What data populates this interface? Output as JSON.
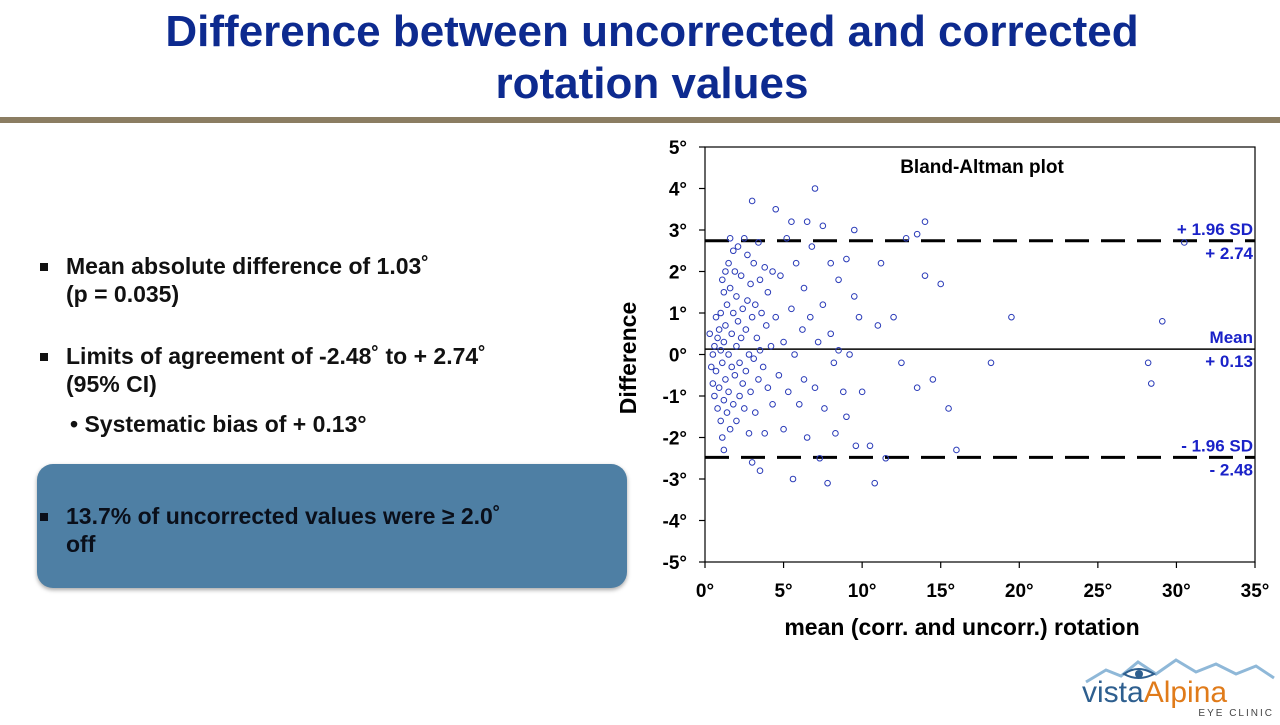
{
  "slide": {
    "title_line1": "Difference between uncorrected and corrected",
    "title_line2": "rotation values"
  },
  "bullets": {
    "mean_abs_line1": "Mean absolute difference of 1.03˚",
    "mean_abs_line2": "(p = 0.035)",
    "limits_line1": "Limits of agreement of -2.48˚ to + 2.74˚",
    "limits_line2": "(95% CI)",
    "bias_sub": "• Systematic bias of + 0.13°",
    "highlight_line1": "13.7% of uncorrected values were ≥ 2.0˚",
    "highlight_line2": "off"
  },
  "logo": {
    "brand_part1": "vista",
    "brand_part2": "Alpina",
    "tagline": "EYE CLINIC"
  },
  "colors": {
    "title": "#0d2a8f",
    "rule": "#8b7d62",
    "highlight_box": "#4e7fa4",
    "points": "#2a3bb8",
    "annotations": "#1a22c8"
  },
  "chart_data": {
    "type": "scatter",
    "title": "Bland-Altman plot",
    "xlabel": "mean (corr. and uncorr.) rotation",
    "ylabel": "Difference",
    "xlim": [
      0,
      35
    ],
    "ylim": [
      -5,
      5
    ],
    "x_ticks": [
      "0°",
      "5°",
      "10°",
      "15°",
      "20°",
      "25°",
      "30°",
      "35°"
    ],
    "y_ticks": [
      "5°",
      "4°",
      "3°",
      "2°",
      "1°",
      "0°",
      "-1°",
      "-2°",
      "-3°",
      "-4°",
      "-5°"
    ],
    "grid": false,
    "reference_lines": [
      {
        "name_line1": "+ 1.96 SD",
        "name_line2": "+ 2.74",
        "value": 2.74,
        "style": "dashed"
      },
      {
        "name_line1": "Mean",
        "name_line2": "+ 0.13",
        "value": 0.13,
        "style": "solid"
      },
      {
        "name_line1": "- 1.96 SD",
        "name_line2": "- 2.48",
        "value": -2.48,
        "style": "dashed"
      }
    ],
    "points": [
      [
        0.3,
        0.5
      ],
      [
        0.4,
        -0.3
      ],
      [
        0.5,
        0.0
      ],
      [
        0.5,
        -0.7
      ],
      [
        0.6,
        0.2
      ],
      [
        0.6,
        -1.0
      ],
      [
        0.7,
        0.9
      ],
      [
        0.7,
        -0.4
      ],
      [
        0.8,
        0.4
      ],
      [
        0.8,
        -1.3
      ],
      [
        0.9,
        0.6
      ],
      [
        0.9,
        -0.8
      ],
      [
        1.0,
        1.0
      ],
      [
        1.0,
        0.1
      ],
      [
        1.0,
        -1.6
      ],
      [
        1.1,
        1.8
      ],
      [
        1.1,
        -0.2
      ],
      [
        1.1,
        -2.0
      ],
      [
        1.2,
        1.5
      ],
      [
        1.2,
        0.3
      ],
      [
        1.2,
        -1.1
      ],
      [
        1.2,
        -2.3
      ],
      [
        1.3,
        2.0
      ],
      [
        1.3,
        0.7
      ],
      [
        1.3,
        -0.6
      ],
      [
        1.4,
        1.2
      ],
      [
        1.4,
        -1.4
      ],
      [
        1.5,
        2.2
      ],
      [
        1.5,
        0.0
      ],
      [
        1.5,
        -0.9
      ],
      [
        1.6,
        2.8
      ],
      [
        1.6,
        1.6
      ],
      [
        1.6,
        -1.8
      ],
      [
        1.7,
        0.5
      ],
      [
        1.7,
        -0.3
      ],
      [
        1.8,
        2.5
      ],
      [
        1.8,
        1.0
      ],
      [
        1.8,
        -1.2
      ],
      [
        1.9,
        2.0
      ],
      [
        1.9,
        -0.5
      ],
      [
        2.0,
        1.4
      ],
      [
        2.0,
        0.2
      ],
      [
        2.0,
        -1.6
      ],
      [
        2.1,
        2.6
      ],
      [
        2.1,
        0.8
      ],
      [
        2.2,
        -0.2
      ],
      [
        2.2,
        -1.0
      ],
      [
        2.3,
        1.9
      ],
      [
        2.3,
        0.4
      ],
      [
        2.4,
        1.1
      ],
      [
        2.4,
        -0.7
      ],
      [
        2.5,
        2.8
      ],
      [
        2.5,
        -1.3
      ],
      [
        2.6,
        0.6
      ],
      [
        2.6,
        -0.4
      ],
      [
        2.7,
        2.4
      ],
      [
        2.7,
        1.3
      ],
      [
        2.8,
        0.0
      ],
      [
        2.8,
        -1.9
      ],
      [
        2.9,
        1.7
      ],
      [
        2.9,
        -0.9
      ],
      [
        3.0,
        3.7
      ],
      [
        3.0,
        0.9
      ],
      [
        3.0,
        -2.6
      ],
      [
        3.1,
        2.2
      ],
      [
        3.1,
        -0.1
      ],
      [
        3.2,
        1.2
      ],
      [
        3.2,
        -1.4
      ],
      [
        3.3,
        0.4
      ],
      [
        3.4,
        2.7
      ],
      [
        3.4,
        -0.6
      ],
      [
        3.5,
        1.8
      ],
      [
        3.5,
        0.1
      ],
      [
        3.5,
        -2.8
      ],
      [
        3.6,
        1.0
      ],
      [
        3.7,
        -0.3
      ],
      [
        3.8,
        2.1
      ],
      [
        3.8,
        -1.9
      ],
      [
        3.9,
        0.7
      ],
      [
        4.0,
        1.5
      ],
      [
        4.0,
        -0.8
      ],
      [
        4.2,
        0.2
      ],
      [
        4.3,
        2.0
      ],
      [
        4.3,
        -1.2
      ],
      [
        4.5,
        3.5
      ],
      [
        4.5,
        0.9
      ],
      [
        4.7,
        -0.5
      ],
      [
        4.8,
        1.9
      ],
      [
        5.0,
        0.3
      ],
      [
        5.0,
        -1.8
      ],
      [
        5.2,
        2.8
      ],
      [
        5.3,
        -0.9
      ],
      [
        5.5,
        3.2
      ],
      [
        5.5,
        1.1
      ],
      [
        5.6,
        -3.0
      ],
      [
        5.7,
        0.0
      ],
      [
        5.8,
        2.2
      ],
      [
        6.0,
        -1.2
      ],
      [
        6.2,
        0.6
      ],
      [
        6.3,
        1.6
      ],
      [
        6.3,
        -0.6
      ],
      [
        6.5,
        3.2
      ],
      [
        6.5,
        -2.0
      ],
      [
        6.7,
        0.9
      ],
      [
        6.8,
        2.6
      ],
      [
        7.0,
        -0.8
      ],
      [
        7.0,
        4.0
      ],
      [
        7.2,
        0.3
      ],
      [
        7.3,
        -2.5
      ],
      [
        7.5,
        1.2
      ],
      [
        7.5,
        3.1
      ],
      [
        7.6,
        -1.3
      ],
      [
        7.8,
        -3.1
      ],
      [
        8.0,
        2.2
      ],
      [
        8.0,
        0.5
      ],
      [
        8.2,
        -0.2
      ],
      [
        8.3,
        -1.9
      ],
      [
        8.5,
        1.8
      ],
      [
        8.5,
        0.1
      ],
      [
        8.8,
        -0.9
      ],
      [
        9.0,
        2.3
      ],
      [
        9.0,
        -1.5
      ],
      [
        9.2,
        0.0
      ],
      [
        9.5,
        3.0
      ],
      [
        9.5,
        1.4
      ],
      [
        9.6,
        -2.2
      ],
      [
        9.8,
        0.9
      ],
      [
        10.0,
        -0.9
      ],
      [
        10.5,
        -2.2
      ],
      [
        10.8,
        -3.1
      ],
      [
        11.0,
        0.7
      ],
      [
        11.2,
        2.2
      ],
      [
        11.5,
        -2.5
      ],
      [
        12.0,
        0.9
      ],
      [
        12.5,
        -0.2
      ],
      [
        12.8,
        2.8
      ],
      [
        13.5,
        2.9
      ],
      [
        13.5,
        -0.8
      ],
      [
        14.0,
        3.2
      ],
      [
        14.0,
        1.9
      ],
      [
        14.5,
        -0.6
      ],
      [
        15.0,
        1.7
      ],
      [
        15.5,
        -1.3
      ],
      [
        16.0,
        -2.3
      ],
      [
        18.2,
        -0.2
      ],
      [
        19.5,
        0.9
      ],
      [
        28.2,
        -0.2
      ],
      [
        28.4,
        -0.7
      ],
      [
        29.1,
        0.8
      ],
      [
        30.5,
        2.7
      ]
    ]
  }
}
